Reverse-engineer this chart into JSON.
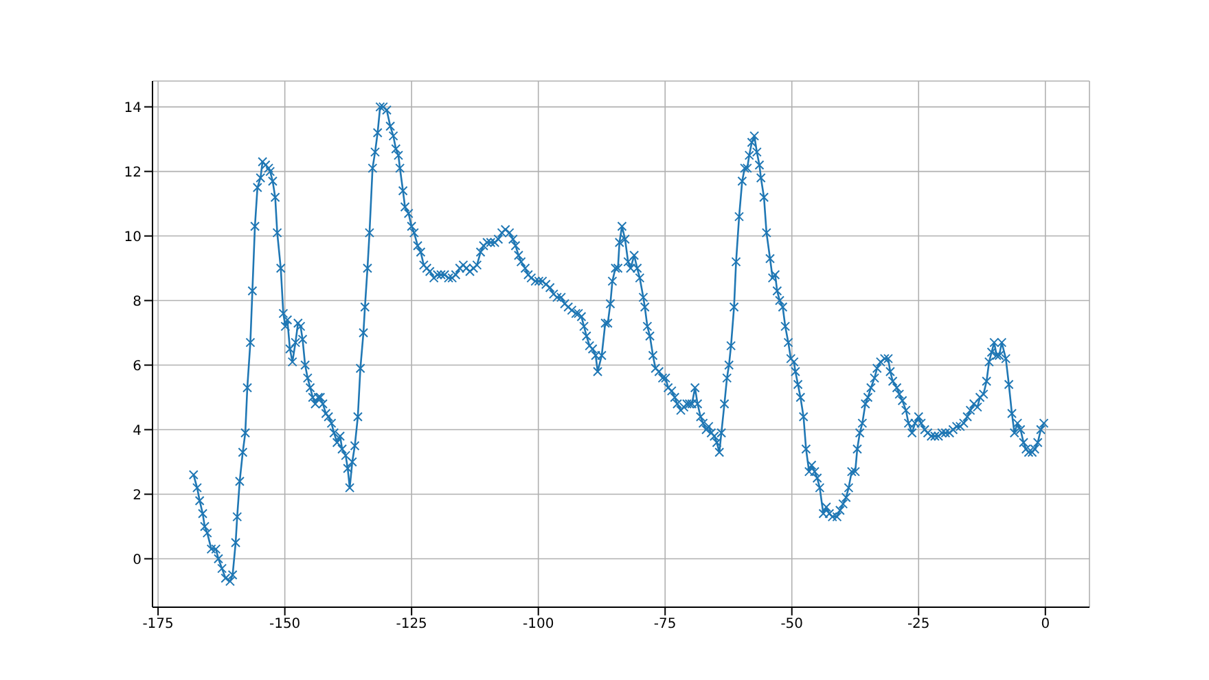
{
  "chart_data": {
    "type": "line",
    "x": [
      -168.0,
      -167.3,
      -166.8,
      -166.2,
      -165.8,
      -165.3,
      -164.5,
      -163.6,
      -163.1,
      -162.4,
      -161.7,
      -160.8,
      -160.3,
      -159.7,
      -159.4,
      -158.9,
      -158.3,
      -157.8,
      -157.4,
      -156.8,
      -156.4,
      -155.9,
      -155.4,
      -154.8,
      -154.4,
      -153.8,
      -153.2,
      -152.9,
      -152.4,
      -151.9,
      -151.5,
      -150.8,
      -150.3,
      -149.9,
      -149.5,
      -149.0,
      -148.5,
      -147.9,
      -147.4,
      -146.9,
      -146.5,
      -146.0,
      -145.5,
      -145.0,
      -144.5,
      -144.0,
      -143.4,
      -143.0,
      -142.5,
      -141.9,
      -141.4,
      -140.8,
      -140.3,
      -139.7,
      -139.1,
      -138.7,
      -138.0,
      -137.6,
      -137.2,
      -136.7,
      -136.2,
      -135.6,
      -135.1,
      -134.5,
      -134.2,
      -133.7,
      -133.3,
      -132.7,
      -132.2,
      -131.7,
      -131.2,
      -130.6,
      -129.9,
      -129.2,
      -128.6,
      -128.1,
      -127.6,
      -127.3,
      -126.7,
      -126.3,
      -125.6,
      -125.0,
      -124.5,
      -123.8,
      -123.2,
      -122.6,
      -122.0,
      -121.4,
      -120.6,
      -119.9,
      -119.2,
      -118.5,
      -117.7,
      -117.0,
      -116.3,
      -115.5,
      -114.8,
      -114.2,
      -113.5,
      -112.8,
      -112.1,
      -111.4,
      -110.8,
      -110.1,
      -109.4,
      -108.6,
      -107.9,
      -107.2,
      -106.5,
      -105.7,
      -105.0,
      -104.5,
      -103.9,
      -103.4,
      -102.6,
      -102.0,
      -101.4,
      -100.6,
      -99.9,
      -99.2,
      -98.5,
      -97.7,
      -97.0,
      -96.3,
      -95.5,
      -94.8,
      -94.1,
      -93.4,
      -92.6,
      -92.1,
      -91.5,
      -91.0,
      -90.5,
      -89.9,
      -89.3,
      -88.7,
      -88.3,
      -87.5,
      -86.8,
      -86.3,
      -85.8,
      -85.4,
      -84.8,
      -84.3,
      -84.0,
      -83.5,
      -82.9,
      -82.3,
      -81.8,
      -81.1,
      -80.5,
      -80.0,
      -79.3,
      -79.0,
      -78.5,
      -78.0,
      -77.4,
      -76.9,
      -76.2,
      -75.5,
      -74.9,
      -74.4,
      -73.7,
      -73.1,
      -72.6,
      -71.9,
      -71.3,
      -70.7,
      -70.2,
      -69.7,
      -69.1,
      -68.6,
      -68.0,
      -67.5,
      -66.9,
      -66.4,
      -65.9,
      -65.3,
      -64.8,
      -64.3,
      -63.9,
      -63.3,
      -62.8,
      -62.4,
      -62.0,
      -61.4,
      -61.0,
      -60.4,
      -59.8,
      -59.3,
      -58.8,
      -58.4,
      -57.9,
      -57.4,
      -56.9,
      -56.4,
      -56.1,
      -55.5,
      -55.0,
      -54.3,
      -53.8,
      -53.3,
      -52.9,
      -52.4,
      -51.8,
      -51.3,
      -50.7,
      -50.2,
      -49.6,
      -49.3,
      -48.8,
      -48.3,
      -47.7,
      -47.2,
      -46.6,
      -46.1,
      -45.5,
      -45.0,
      -44.5,
      -43.8,
      -43.2,
      -42.6,
      -42.0,
      -41.1,
      -40.5,
      -39.9,
      -39.3,
      -38.8,
      -38.2,
      -37.5,
      -37.1,
      -36.6,
      -36.1,
      -35.5,
      -35.0,
      -34.4,
      -33.7,
      -33.2,
      -32.5,
      -31.7,
      -31.0,
      -30.6,
      -30.1,
      -29.3,
      -28.8,
      -28.2,
      -27.5,
      -27.0,
      -26.3,
      -25.7,
      -25.0,
      -24.5,
      -23.8,
      -23.2,
      -22.5,
      -21.8,
      -21.1,
      -20.4,
      -19.7,
      -18.9,
      -18.2,
      -17.5,
      -16.8,
      -16.1,
      -15.4,
      -14.8,
      -14.1,
      -13.4,
      -12.9,
      -12.2,
      -11.6,
      -11.1,
      -10.6,
      -10.1,
      -9.6,
      -9.1,
      -8.6,
      -7.8,
      -7.2,
      -6.6,
      -6.1,
      -5.5,
      -4.9,
      -4.3,
      -3.8,
      -3.3,
      -2.6,
      -2.1,
      -1.5,
      -0.9,
      -0.3
    ],
    "series": [
      {
        "color": "#1f77b4",
        "values": [
          2.6,
          2.2,
          1.8,
          1.4,
          1.0,
          0.8,
          0.3,
          0.3,
          0.0,
          -0.3,
          -0.6,
          -0.7,
          -0.5,
          0.5,
          1.3,
          2.4,
          3.3,
          3.9,
          5.3,
          6.7,
          8.3,
          10.3,
          11.5,
          11.8,
          12.3,
          12.2,
          12.1,
          12.0,
          11.7,
          11.2,
          10.1,
          9.0,
          7.6,
          7.2,
          7.4,
          6.5,
          6.1,
          6.7,
          7.3,
          7.2,
          6.8,
          6.0,
          5.6,
          5.3,
          5.0,
          4.8,
          5.0,
          5.0,
          4.8,
          4.5,
          4.4,
          4.2,
          3.9,
          3.6,
          3.8,
          3.4,
          3.2,
          2.8,
          2.2,
          3.0,
          3.5,
          4.4,
          5.9,
          7.0,
          7.8,
          9.0,
          10.1,
          12.1,
          12.6,
          13.2,
          14.0,
          14.0,
          13.9,
          13.4,
          13.1,
          12.7,
          12.5,
          12.1,
          11.4,
          10.9,
          10.7,
          10.3,
          10.1,
          9.7,
          9.5,
          9.1,
          9.0,
          8.9,
          8.7,
          8.8,
          8.8,
          8.8,
          8.7,
          8.7,
          8.8,
          9.0,
          9.1,
          9.0,
          8.9,
          9.0,
          9.1,
          9.5,
          9.7,
          9.8,
          9.8,
          9.8,
          9.9,
          10.1,
          10.2,
          10.1,
          9.9,
          9.7,
          9.4,
          9.2,
          9.0,
          8.8,
          8.7,
          8.6,
          8.6,
          8.6,
          8.5,
          8.4,
          8.2,
          8.1,
          8.1,
          7.9,
          7.8,
          7.7,
          7.6,
          7.6,
          7.5,
          7.2,
          6.9,
          6.6,
          6.5,
          6.3,
          5.8,
          6.3,
          7.3,
          7.3,
          7.9,
          8.6,
          9.0,
          9.0,
          9.8,
          10.3,
          9.9,
          9.2,
          9.0,
          9.4,
          9.0,
          8.7,
          8.1,
          7.8,
          7.2,
          6.9,
          6.3,
          5.9,
          5.8,
          5.6,
          5.6,
          5.3,
          5.2,
          5.0,
          4.8,
          4.6,
          4.7,
          4.8,
          4.8,
          4.8,
          5.3,
          4.8,
          4.4,
          4.2,
          4.0,
          4.1,
          3.9,
          3.8,
          3.6,
          3.3,
          3.9,
          4.8,
          5.6,
          6.0,
          6.6,
          7.8,
          9.2,
          10.6,
          11.7,
          12.1,
          12.1,
          12.5,
          12.9,
          13.1,
          12.6,
          12.2,
          11.8,
          11.2,
          10.1,
          9.3,
          8.7,
          8.8,
          8.3,
          8.0,
          7.8,
          7.2,
          6.7,
          6.2,
          6.1,
          5.8,
          5.4,
          5.0,
          4.4,
          3.4,
          2.7,
          2.9,
          2.7,
          2.5,
          2.2,
          1.4,
          1.6,
          1.4,
          1.3,
          1.3,
          1.5,
          1.7,
          1.9,
          2.2,
          2.7,
          2.7,
          3.4,
          3.9,
          4.2,
          4.8,
          5.0,
          5.3,
          5.6,
          5.9,
          6.1,
          6.2,
          6.2,
          5.8,
          5.5,
          5.3,
          5.1,
          4.9,
          4.6,
          4.2,
          3.9,
          4.2,
          4.4,
          4.2,
          4.0,
          3.9,
          3.8,
          3.8,
          3.8,
          3.9,
          3.9,
          3.9,
          4.0,
          4.1,
          4.1,
          4.2,
          4.4,
          4.6,
          4.8,
          4.7,
          5.0,
          5.1,
          5.5,
          6.1,
          6.4,
          6.7,
          6.3,
          6.3,
          6.7,
          6.2,
          5.4,
          4.5,
          3.9,
          4.2,
          4.0,
          3.6,
          3.4,
          3.3,
          3.3,
          3.4,
          3.6,
          4.0,
          4.2
        ]
      }
    ],
    "xlim": [
      -176.1,
      8.7
    ],
    "ylim": [
      -1.5,
      14.8
    ],
    "xticks": [
      -175,
      -150,
      -125,
      -100,
      -75,
      -50,
      -25,
      0
    ],
    "yticks": [
      0,
      2,
      4,
      6,
      8,
      10,
      12,
      14
    ],
    "grid": true,
    "marker": "cross",
    "line_style": "solid"
  }
}
